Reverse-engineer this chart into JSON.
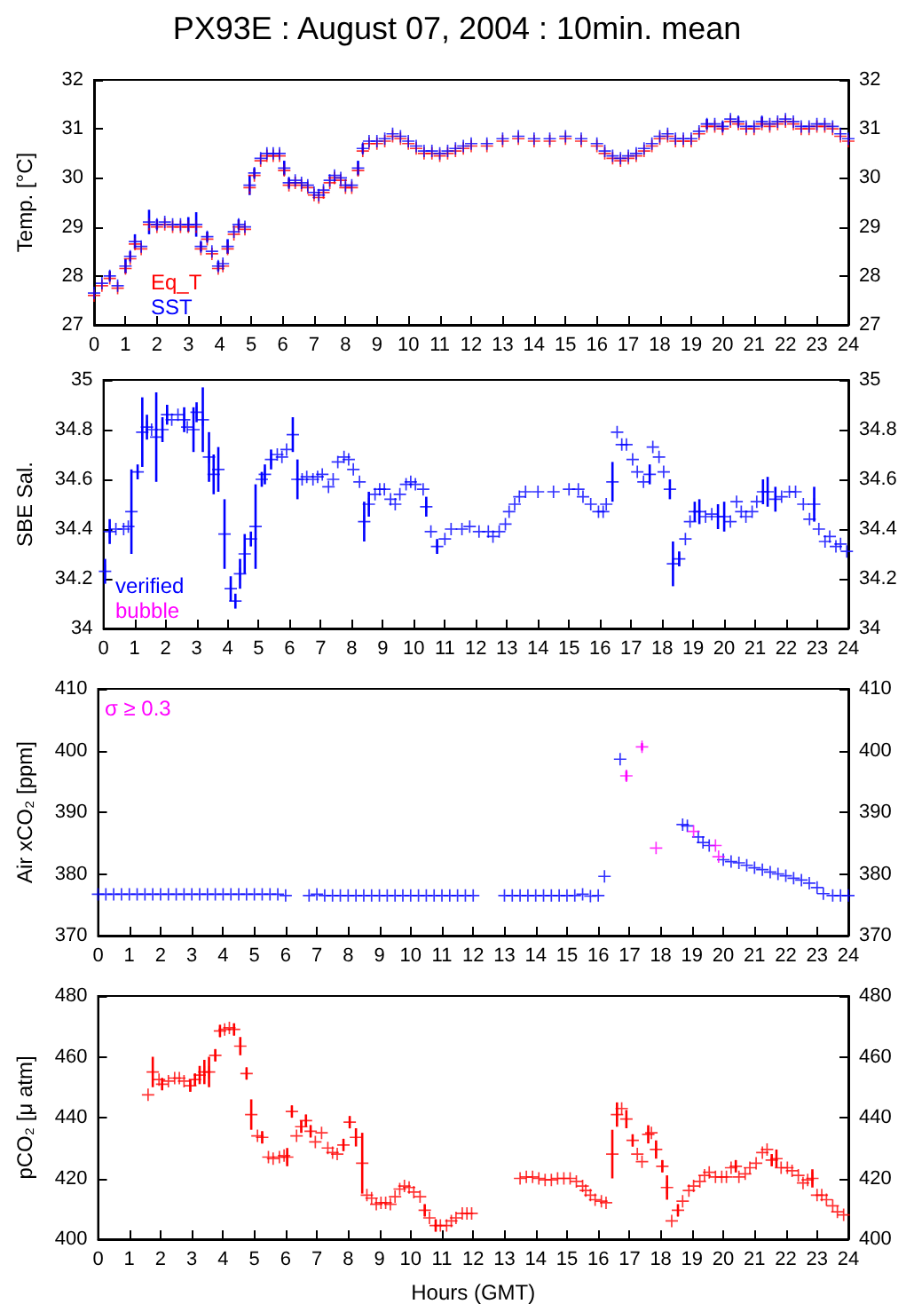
{
  "chart_data": [
    {
      "type": "scatter",
      "title": "PX93E : August 07, 2004 : 10min. mean",
      "ylabel": "Temp. [°C]",
      "marker": "cross",
      "legend": "bottom left",
      "grid": false,
      "xlim": [
        0,
        24
      ],
      "xticks": [
        0,
        1,
        2,
        3,
        4,
        5,
        6,
        7,
        8,
        9,
        10,
        11,
        12,
        13,
        14,
        15,
        16,
        17,
        18,
        19,
        20,
        21,
        22,
        23,
        24
      ],
      "ylim": [
        27,
        32
      ],
      "yticks": [
        27,
        28,
        29,
        30,
        31,
        32
      ],
      "y2lim": [
        27,
        32
      ],
      "y2ticks": [
        27,
        28,
        29,
        30,
        31,
        32
      ],
      "x": [
        0,
        0.25,
        0.5,
        0.75,
        1,
        1.15,
        1.3,
        1.5,
        1.75,
        2,
        2.25,
        2.5,
        2.75,
        3,
        3.25,
        3.4,
        3.6,
        3.75,
        3.95,
        4.1,
        4.25,
        4.45,
        4.6,
        4.8,
        4.95,
        5.1,
        5.3,
        5.5,
        5.7,
        5.9,
        6.05,
        6.2,
        6.4,
        6.6,
        6.8,
        7,
        7.15,
        7.3,
        7.5,
        7.65,
        7.85,
        8,
        8.2,
        8.4,
        8.55,
        8.75,
        9,
        9.25,
        9.5,
        9.75,
        10,
        10.25,
        10.5,
        10.75,
        11,
        11.25,
        11.5,
        11.75,
        12,
        12.5,
        13,
        13.5,
        14,
        14.5,
        15,
        15.5,
        16,
        16.25,
        16.5,
        16.75,
        17,
        17.25,
        17.5,
        17.75,
        18,
        18.25,
        18.5,
        18.75,
        19,
        19.25,
        19.5,
        19.75,
        20,
        20.25,
        20.5,
        20.75,
        21,
        21.25,
        21.5,
        21.75,
        22,
        22.25,
        22.5,
        22.75,
        23,
        23.25,
        23.5,
        23.75,
        24
      ],
      "series": [
        {
          "name": "Eq_T",
          "color": "#ff0000",
          "values": [
            27.6,
            27.8,
            27.95,
            27.75,
            28.15,
            28.35,
            28.65,
            28.55,
            29.05,
            29.0,
            29.05,
            29.0,
            29.0,
            29.0,
            29.0,
            28.55,
            28.75,
            28.45,
            28.15,
            28.2,
            28.55,
            28.85,
            29.0,
            28.95,
            29.8,
            30.05,
            30.35,
            30.45,
            30.45,
            30.45,
            30.15,
            29.85,
            29.9,
            29.85,
            29.8,
            29.65,
            29.6,
            29.7,
            29.9,
            30.0,
            29.95,
            29.8,
            29.8,
            30.15,
            30.55,
            30.7,
            30.7,
            30.75,
            30.85,
            30.8,
            30.7,
            30.6,
            30.5,
            30.5,
            30.45,
            30.5,
            30.55,
            30.6,
            30.65,
            30.65,
            30.75,
            30.8,
            30.75,
            30.75,
            30.8,
            30.75,
            30.65,
            30.5,
            30.4,
            30.35,
            30.4,
            30.45,
            30.55,
            30.65,
            30.8,
            30.85,
            30.75,
            30.75,
            30.75,
            30.9,
            31.05,
            31.05,
            31.0,
            31.15,
            31.1,
            31.0,
            31.0,
            31.1,
            31.05,
            31.1,
            31.15,
            31.1,
            31.0,
            31.0,
            31.05,
            31.05,
            31.0,
            30.85,
            30.75
          ]
        },
        {
          "name": "SST",
          "color": "#0000ff",
          "errors": [
            null,
            null,
            0.1,
            null,
            0.15,
            0.1,
            0.15,
            null,
            0.25,
            0.1,
            null,
            null,
            null,
            0.15,
            0.25,
            0.1,
            0.1,
            null,
            0.1,
            null,
            0.15,
            null,
            0.1,
            null,
            0.2,
            0.1,
            null,
            null,
            null,
            null,
            0.15,
            0.1,
            null,
            null,
            null,
            null,
            null,
            null,
            null,
            null,
            null,
            null,
            null,
            0.15,
            0.1,
            null,
            null,
            null,
            null,
            null,
            null,
            null,
            null,
            null,
            null,
            null,
            null,
            null,
            null,
            null,
            null,
            null,
            null,
            null,
            null,
            null,
            null,
            null,
            null,
            null,
            null,
            null,
            null,
            null,
            null,
            null,
            null,
            null,
            null,
            null,
            0.1,
            null,
            0.1,
            null,
            0.1,
            null,
            null,
            0.1,
            null,
            null,
            null,
            null,
            null,
            null,
            null,
            null,
            null,
            null,
            null
          ],
          "values": [
            27.65,
            27.85,
            28.0,
            27.8,
            28.2,
            28.4,
            28.7,
            28.6,
            29.1,
            29.05,
            29.1,
            29.05,
            29.05,
            29.05,
            29.05,
            28.6,
            28.8,
            28.5,
            28.2,
            28.25,
            28.6,
            28.9,
            29.05,
            29.0,
            29.85,
            30.1,
            30.4,
            30.5,
            30.5,
            30.5,
            30.2,
            29.9,
            29.95,
            29.9,
            29.85,
            29.7,
            29.65,
            29.75,
            29.95,
            30.05,
            30.0,
            29.85,
            29.85,
            30.2,
            30.6,
            30.75,
            30.75,
            30.8,
            30.9,
            30.85,
            30.75,
            30.65,
            30.55,
            30.55,
            30.5,
            30.55,
            30.6,
            30.65,
            30.7,
            30.7,
            30.8,
            30.85,
            30.8,
            30.8,
            30.85,
            30.8,
            30.7,
            30.55,
            30.45,
            30.4,
            30.45,
            30.5,
            30.6,
            30.7,
            30.85,
            30.9,
            30.8,
            30.8,
            30.8,
            30.95,
            31.1,
            31.1,
            31.05,
            31.2,
            31.15,
            31.05,
            31.05,
            31.15,
            31.1,
            31.15,
            31.2,
            31.15,
            31.05,
            31.05,
            31.1,
            31.1,
            31.05,
            30.9,
            30.8
          ]
        }
      ]
    },
    {
      "type": "scatter",
      "ylabel": "SBE Sal.",
      "marker": "cross",
      "legend": "bottom left",
      "grid": false,
      "xlim": [
        0,
        24
      ],
      "xticks": [
        0,
        1,
        2,
        3,
        4,
        5,
        6,
        7,
        8,
        9,
        10,
        11,
        12,
        13,
        14,
        15,
        16,
        17,
        18,
        19,
        20,
        21,
        22,
        23,
        24
      ],
      "ylim": [
        34,
        35
      ],
      "yticks": [
        34,
        34.2,
        34.4,
        34.6,
        34.8,
        35
      ],
      "y2lim": [
        34,
        35
      ],
      "y2ticks": [
        34,
        34.2,
        34.4,
        34.6,
        34.8,
        35
      ],
      "series": [
        {
          "name": "verified",
          "color": "#0000ff",
          "x": [
            0.05,
            0.2,
            0.4,
            0.65,
            0.8,
            0.9,
            1.1,
            1.25,
            1.4,
            1.55,
            1.7,
            1.9,
            2.05,
            2.2,
            2.4,
            2.6,
            2.7,
            2.9,
            3.0,
            3.2,
            3.4,
            3.55,
            3.7,
            3.9,
            4.1,
            4.25,
            4.4,
            4.55,
            4.75,
            4.9,
            5.1,
            5.2,
            5.4,
            5.6,
            5.75,
            5.9,
            6.1,
            6.25,
            6.4,
            6.55,
            6.75,
            6.9,
            7.05,
            7.25,
            7.4,
            7.55,
            7.75,
            7.9,
            8.05,
            8.25,
            8.4,
            8.55,
            8.75,
            8.9,
            9.05,
            9.25,
            9.4,
            9.55,
            9.75,
            9.9,
            10.05,
            10.3,
            10.4,
            10.55,
            10.75,
            11.0,
            11.2,
            11.55,
            11.8,
            12.1,
            12.4,
            12.55,
            12.75,
            12.95,
            13.07,
            13.25,
            13.4,
            13.6,
            14.0,
            14.5,
            15.0,
            15.3,
            15.45,
            15.7,
            15.95,
            16.1,
            16.2,
            16.4,
            16.55,
            16.7,
            16.85,
            17.05,
            17.2,
            17.4,
            17.6,
            17.7,
            17.9,
            18.05,
            18.25,
            18.35,
            18.55,
            18.75,
            18.9,
            19.05,
            19.2,
            19.4,
            19.6,
            19.8,
            20.0,
            20.2,
            20.4,
            20.55,
            20.7,
            20.9,
            21.05,
            21.25,
            21.4,
            21.65,
            21.85,
            22.1,
            22.3,
            22.55,
            22.75,
            22.9,
            23.05,
            23.25,
            23.4,
            23.6,
            23.75,
            23.95
          ],
          "values": [
            34.23,
            34.39,
            34.4,
            34.4,
            34.41,
            34.47,
            34.63,
            34.79,
            34.81,
            34.8,
            34.77,
            34.8,
            34.86,
            34.84,
            34.86,
            34.84,
            34.81,
            34.8,
            34.87,
            34.84,
            34.69,
            34.62,
            34.64,
            34.38,
            34.16,
            34.11,
            34.22,
            34.3,
            34.36,
            34.41,
            34.6,
            34.62,
            34.68,
            34.7,
            34.69,
            34.72,
            34.78,
            34.6,
            34.6,
            34.61,
            34.6,
            34.61,
            34.62,
            34.57,
            34.6,
            34.67,
            34.69,
            34.68,
            34.64,
            34.59,
            34.43,
            34.5,
            34.54,
            34.56,
            34.56,
            34.52,
            34.5,
            34.54,
            34.58,
            34.59,
            34.58,
            34.56,
            34.49,
            34.39,
            34.33,
            34.36,
            34.4,
            34.4,
            34.41,
            34.39,
            34.39,
            34.37,
            34.39,
            34.42,
            34.47,
            34.5,
            34.53,
            34.55,
            34.55,
            34.55,
            34.56,
            34.56,
            34.53,
            34.5,
            34.47,
            34.47,
            34.5,
            34.59,
            34.79,
            34.74,
            34.74,
            34.68,
            34.63,
            34.59,
            34.62,
            34.73,
            34.69,
            34.63,
            34.56,
            34.26,
            34.28,
            34.36,
            34.43,
            34.47,
            34.47,
            34.45,
            34.46,
            34.45,
            34.45,
            34.43,
            34.51,
            34.47,
            34.45,
            34.47,
            34.51,
            34.55,
            34.55,
            34.52,
            34.53,
            34.55,
            34.55,
            34.5,
            34.44,
            34.5,
            34.4,
            34.35,
            34.37,
            34.33,
            34.34,
            34.31
          ],
          "errors": [
            0.05,
            0.05,
            null,
            null,
            null,
            0.17,
            0.03,
            0.14,
            0.05,
            null,
            0.18,
            0.05,
            0.04,
            null,
            null,
            0.05,
            null,
            0.09,
            0.04,
            0.13,
            0.1,
            0.08,
            0.09,
            0.14,
            0.05,
            0.03,
            0.06,
            0.08,
            0.03,
            0.17,
            0.03,
            0.04,
            0.04,
            null,
            null,
            null,
            0.07,
            0.08,
            null,
            null,
            null,
            null,
            null,
            null,
            null,
            null,
            null,
            null,
            null,
            null,
            0.08,
            0.05,
            null,
            null,
            null,
            null,
            null,
            null,
            null,
            null,
            null,
            null,
            0.04,
            null,
            0.03,
            null,
            null,
            null,
            null,
            null,
            null,
            null,
            null,
            null,
            null,
            null,
            null,
            null,
            null,
            null,
            null,
            null,
            null,
            null,
            null,
            null,
            null,
            0.08,
            null,
            null,
            null,
            null,
            null,
            null,
            0.04,
            null,
            null,
            null,
            0.04,
            0.09,
            0.03,
            null,
            null,
            0.04,
            0.05,
            null,
            null,
            0.05,
            0.06,
            null,
            null,
            null,
            null,
            null,
            null,
            0.05,
            0.06,
            0.05,
            null,
            null,
            null,
            null,
            null,
            0.07,
            null,
            null,
            null,
            null,
            null,
            null
          ]
        },
        {
          "name": "bubble",
          "color": "#ff00ff"
        }
      ]
    },
    {
      "type": "scatter",
      "ylabel": "Air xCO₂ [ppm]",
      "marker": "cross",
      "legend": "top left",
      "grid": false,
      "xlim": [
        0,
        24
      ],
      "xticks": [
        0,
        1,
        2,
        3,
        4,
        5,
        6,
        7,
        8,
        9,
        10,
        11,
        12,
        13,
        14,
        15,
        16,
        17,
        18,
        19,
        20,
        21,
        22,
        23,
        24
      ],
      "ylim": [
        370,
        410
      ],
      "yticks": [
        370,
        380,
        390,
        400,
        410
      ],
      "y2lim": [
        370,
        410
      ],
      "y2ticks": [
        370,
        380,
        390,
        400,
        410
      ],
      "series": [
        {
          "color": "#0000ff",
          "x": [
            0,
            0.25,
            0.5,
            0.75,
            1,
            1.25,
            1.5,
            1.75,
            2,
            2.25,
            2.5,
            2.75,
            3,
            3.25,
            3.5,
            3.75,
            4,
            4.25,
            4.5,
            4.75,
            5,
            5.25,
            5.5,
            5.75,
            6,
            6.75,
            7,
            7.25,
            7.5,
            7.75,
            8,
            8.25,
            8.5,
            8.75,
            9,
            9.25,
            9.5,
            9.75,
            10,
            10.25,
            10.5,
            10.75,
            11,
            11.25,
            11.5,
            11.75,
            12,
            13,
            13.25,
            13.5,
            13.75,
            14,
            14.25,
            14.5,
            14.75,
            15,
            15.25,
            15.5,
            15.75,
            16,
            16.2,
            16.7,
            18.7,
            18.85,
            19.2,
            19.35,
            19.55,
            20,
            20.25,
            20.5,
            20.75,
            21,
            21.25,
            21.5,
            21.75,
            22,
            22.25,
            22.5,
            22.75,
            23,
            23.2,
            23.5,
            23.75,
            24
          ],
          "values": [
            376.7,
            376.7,
            376.7,
            376.7,
            376.7,
            376.7,
            376.7,
            376.7,
            376.7,
            376.7,
            376.7,
            376.7,
            376.7,
            376.7,
            376.7,
            376.7,
            376.7,
            376.7,
            376.7,
            376.7,
            376.7,
            376.7,
            376.7,
            376.7,
            376.5,
            376.5,
            376.7,
            376.5,
            376.5,
            376.5,
            376.5,
            376.5,
            376.5,
            376.5,
            376.5,
            376.5,
            376.5,
            376.5,
            376.5,
            376.5,
            376.5,
            376.5,
            376.5,
            376.5,
            376.5,
            376.5,
            376.5,
            376.5,
            376.5,
            376.5,
            376.5,
            376.5,
            376.5,
            376.5,
            376.5,
            376.5,
            376.5,
            376.7,
            376.4,
            376.5,
            379.6,
            398.6,
            388,
            387.8,
            386,
            385.1,
            384.6,
            382.3,
            382,
            381.8,
            381.4,
            381,
            380.7,
            380.3,
            380,
            379.7,
            379.3,
            379,
            378.5,
            377.8,
            376.8,
            376.5,
            376.5,
            376.5
          ]
        },
        {
          "name": "σ ≥ 0.3",
          "color": "#ff00ff",
          "x": [
            16.9,
            17.4,
            17.85,
            19.05,
            19.75,
            19.85
          ],
          "values": [
            395.9,
            400.6,
            384.2,
            386.9,
            384.6,
            382.8
          ],
          "errors": [
            0.8,
            0.6,
            null,
            null,
            null,
            null
          ]
        }
      ]
    },
    {
      "type": "scatter",
      "ylabel": "pCO₂ [μ atm]",
      "xlabel": "Hours (GMT)",
      "marker": "cross",
      "grid": false,
      "xlim": [
        0,
        24
      ],
      "xticks": [
        0,
        1,
        2,
        3,
        4,
        5,
        6,
        7,
        8,
        9,
        10,
        11,
        12,
        13,
        14,
        15,
        16,
        17,
        18,
        19,
        20,
        21,
        22,
        23,
        24
      ],
      "ylim": [
        400,
        480
      ],
      "yticks": [
        400,
        420,
        440,
        460,
        480
      ],
      "y2lim": [
        400,
        480
      ],
      "y2ticks": [
        400,
        420,
        440,
        460,
        480
      ],
      "series": [
        {
          "color": "#ff0000",
          "x": [
            1.6,
            1.75,
            1.95,
            2.05,
            2.25,
            2.45,
            2.6,
            2.75,
            2.95,
            3.1,
            3.25,
            3.4,
            3.55,
            3.75,
            3.9,
            4.05,
            4.2,
            4.35,
            4.55,
            4.75,
            4.9,
            5.1,
            5.25,
            5.45,
            5.6,
            5.8,
            5.95,
            6.05,
            6.2,
            6.35,
            6.5,
            6.65,
            6.8,
            6.95,
            7.15,
            7.35,
            7.5,
            7.65,
            7.85,
            8.05,
            8.25,
            8.45,
            8.6,
            8.75,
            8.9,
            9.05,
            9.2,
            9.35,
            9.5,
            9.65,
            9.8,
            9.95,
            10.1,
            10.3,
            10.45,
            10.6,
            10.8,
            10.95,
            11.15,
            11.3,
            11.45,
            11.65,
            11.8,
            11.95,
            13.5,
            13.7,
            13.9,
            14.1,
            14.3,
            14.5,
            14.7,
            14.9,
            15.1,
            15.3,
            15.5,
            15.6,
            15.75,
            15.9,
            16.1,
            16.25,
            16.45,
            16.6,
            16.75,
            16.9,
            17.1,
            17.25,
            17.4,
            17.6,
            17.7,
            17.85,
            18.05,
            18.2,
            18.35,
            18.55,
            18.7,
            18.9,
            19.05,
            19.25,
            19.4,
            19.55,
            19.75,
            19.95,
            20.1,
            20.25,
            20.4,
            20.5,
            20.7,
            20.85,
            21.05,
            21.25,
            21.4,
            21.55,
            21.7,
            21.85,
            22.05,
            22.2,
            22.4,
            22.55,
            22.7,
            22.85,
            23,
            23.15,
            23.3,
            23.5,
            23.65,
            23.85
          ],
          "values": [
            447.5,
            455,
            452.5,
            451,
            452,
            453,
            453,
            452,
            450.5,
            452.5,
            454,
            455,
            455,
            460.5,
            468.5,
            469,
            469.5,
            469,
            463.5,
            454.5,
            441,
            434,
            433.5,
            427,
            426.5,
            427,
            427.5,
            427,
            442,
            434,
            437,
            439,
            435.5,
            432,
            435,
            430,
            428.5,
            428,
            431,
            438.5,
            433.5,
            425,
            414.5,
            413.5,
            411.5,
            412,
            412,
            411.5,
            414,
            416.5,
            417.5,
            417,
            415.5,
            414,
            409.5,
            407,
            404.5,
            404.5,
            404.5,
            406,
            407,
            408.5,
            408.5,
            408.5,
            420,
            420.5,
            420.5,
            420,
            419.5,
            419.5,
            420,
            420,
            420,
            419,
            417.5,
            416,
            414.5,
            413,
            412.5,
            412,
            428,
            441,
            443,
            439.5,
            432.5,
            428,
            425.5,
            434.5,
            435,
            429.5,
            424,
            417,
            406,
            409.5,
            412.5,
            416,
            417.5,
            419,
            421,
            422,
            420.5,
            420.5,
            420.5,
            423.5,
            424,
            420.5,
            421.5,
            423.5,
            425,
            428.5,
            429.5,
            426,
            426.5,
            423.5,
            423.5,
            422.5,
            421,
            418.5,
            419.5,
            420,
            414.5,
            414.5,
            413,
            411,
            409,
            408
          ],
          "errors": [
            null,
            5,
            null,
            2,
            null,
            null,
            null,
            null,
            2,
            2,
            3,
            4,
            5,
            2,
            2,
            null,
            null,
            2,
            3,
            2,
            5,
            null,
            2,
            null,
            null,
            null,
            null,
            3,
            2,
            null,
            2,
            2,
            2,
            null,
            null,
            null,
            null,
            null,
            2,
            2,
            3,
            10,
            null,
            null,
            null,
            null,
            null,
            null,
            null,
            null,
            null,
            null,
            null,
            null,
            2,
            null,
            2,
            null,
            null,
            null,
            null,
            null,
            null,
            null,
            null,
            null,
            null,
            null,
            null,
            null,
            null,
            null,
            null,
            null,
            null,
            null,
            null,
            null,
            null,
            null,
            8,
            4,
            null,
            3,
            2,
            null,
            null,
            3,
            null,
            3,
            2,
            4,
            null,
            2,
            null,
            null,
            null,
            null,
            null,
            null,
            null,
            null,
            null,
            null,
            2,
            null,
            null,
            null,
            null,
            null,
            null,
            2,
            3,
            null,
            null,
            null,
            null,
            null,
            null,
            3,
            null,
            null,
            null,
            null,
            null,
            null
          ]
        }
      ]
    }
  ]
}
